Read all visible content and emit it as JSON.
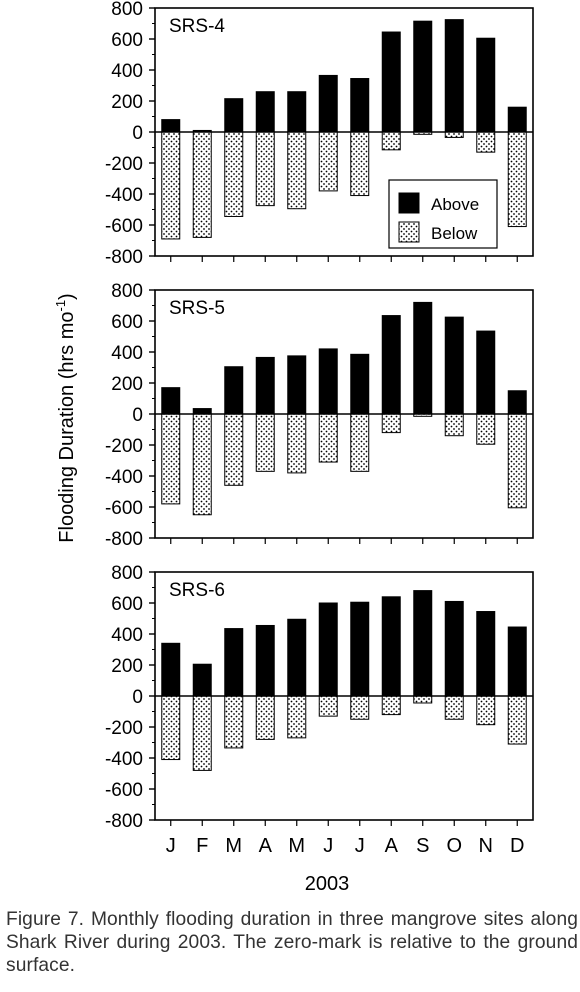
{
  "figure": {
    "ylabel": "Flooding Duration (hrs mo",
    "ylabel_sup": "-1",
    "ylabel_close": ")",
    "xlabel": "2003",
    "caption": "Figure 7. Monthly flooding duration in three mangrove sites along Shark River during 2003. The zero-mark is relative to the ground surface."
  },
  "colors": {
    "above": "#000000",
    "below_dots": "#000000",
    "below_bg": "#ffffff"
  },
  "chart_data": [
    {
      "type": "bar",
      "title": "SRS-4",
      "categories": [
        "J",
        "F",
        "M",
        "A",
        "M",
        "J",
        "J",
        "A",
        "S",
        "O",
        "N",
        "D"
      ],
      "series": [
        {
          "name": "Above",
          "values": [
            80,
            10,
            215,
            260,
            260,
            365,
            345,
            645,
            715,
            725,
            605,
            160
          ]
        },
        {
          "name": "Below",
          "values": [
            -690,
            -680,
            -545,
            -475,
            -495,
            -380,
            -410,
            -115,
            -15,
            -35,
            -130,
            -610
          ]
        }
      ],
      "ylim": [
        -800,
        800
      ],
      "yticks": [
        800,
        600,
        400,
        200,
        0,
        -200,
        -400,
        -600,
        -800
      ],
      "legend": "bottom-right"
    },
    {
      "type": "bar",
      "title": "SRS-5",
      "categories": [
        "J",
        "F",
        "M",
        "A",
        "M",
        "J",
        "J",
        "A",
        "S",
        "O",
        "N",
        "D"
      ],
      "series": [
        {
          "name": "Above",
          "values": [
            170,
            35,
            305,
            365,
            375,
            420,
            385,
            635,
            720,
            625,
            535,
            150
          ]
        },
        {
          "name": "Below",
          "values": [
            -580,
            -650,
            -460,
            -370,
            -380,
            -310,
            -370,
            -120,
            -15,
            -140,
            -195,
            -605
          ]
        }
      ],
      "ylim": [
        -800,
        800
      ],
      "yticks": [
        800,
        600,
        400,
        200,
        0,
        -200,
        -400,
        -600,
        -800
      ]
    },
    {
      "type": "bar",
      "title": "SRS-6",
      "categories": [
        "J",
        "F",
        "M",
        "A",
        "M",
        "J",
        "J",
        "A",
        "S",
        "O",
        "N",
        "D"
      ],
      "series": [
        {
          "name": "Above",
          "values": [
            340,
            205,
            435,
            455,
            495,
            600,
            605,
            640,
            680,
            610,
            545,
            445
          ]
        },
        {
          "name": "Below",
          "values": [
            -410,
            -480,
            -335,
            -280,
            -270,
            -130,
            -150,
            -120,
            -45,
            -150,
            -185,
            -310
          ]
        }
      ],
      "ylim": [
        -800,
        800
      ],
      "yticks": [
        800,
        600,
        400,
        200,
        0,
        -200,
        -400,
        -600,
        -800
      ]
    }
  ]
}
